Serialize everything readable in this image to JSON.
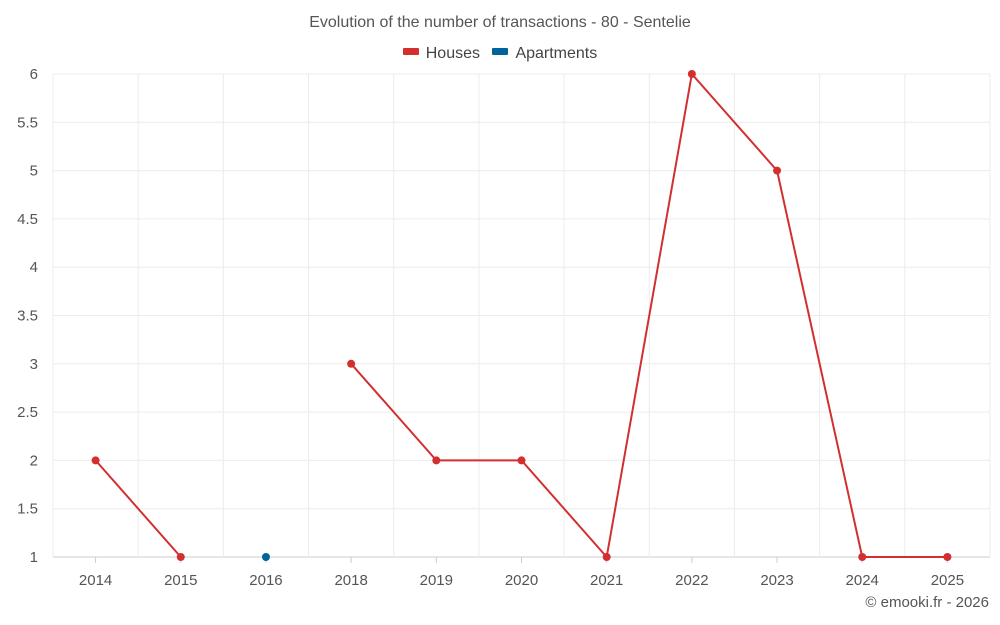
{
  "chart_data": {
    "type": "line",
    "title": "Evolution of the number of transactions - 80 - Sentelie",
    "categories": [
      "2014",
      "2015",
      "2016",
      "2018",
      "2019",
      "2020",
      "2021",
      "2022",
      "2023",
      "2024",
      "2025"
    ],
    "series": [
      {
        "name": "Houses",
        "color": "#d32f2f",
        "values": [
          2,
          1,
          null,
          3,
          2,
          2,
          1,
          6,
          5,
          1,
          1
        ]
      },
      {
        "name": "Apartments",
        "color": "#00639a",
        "values": [
          null,
          null,
          1,
          null,
          null,
          null,
          null,
          null,
          null,
          null,
          null
        ]
      }
    ],
    "yticks": [
      "1",
      "1.5",
      "2",
      "2.5",
      "3",
      "3.5",
      "4",
      "4.5",
      "5",
      "5.5",
      "6"
    ],
    "ylim": [
      1,
      6
    ],
    "xlabel": "",
    "ylabel": "",
    "grid": true,
    "legend_position": "top-center"
  },
  "credit": "© emooki.fr - 2026"
}
